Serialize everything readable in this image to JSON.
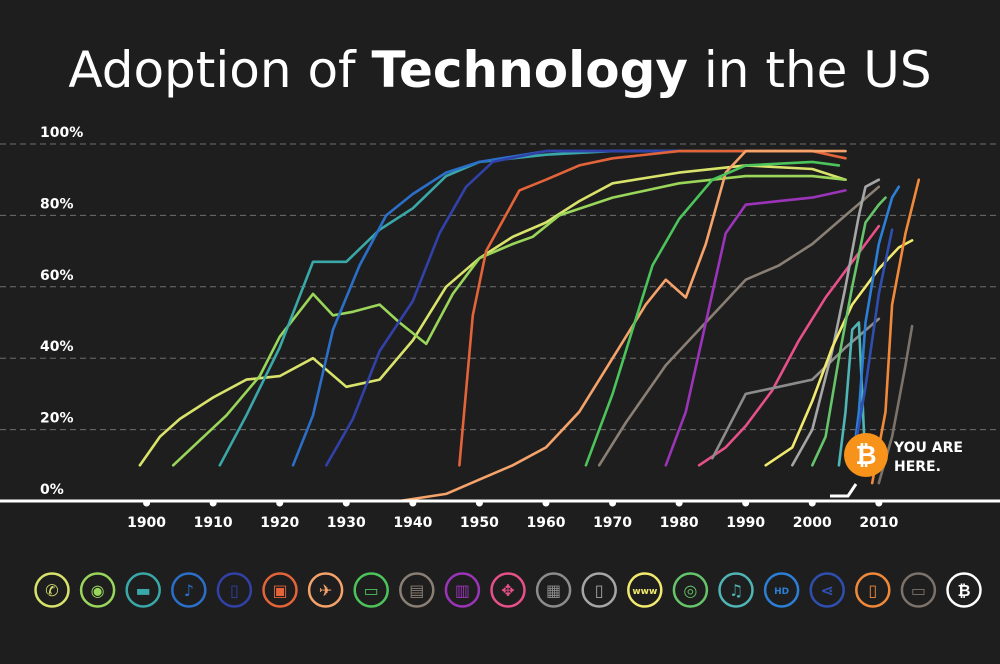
{
  "title": {
    "pre": "Adoption of ",
    "bold": "Technology",
    "post": " in the US"
  },
  "callout": {
    "line1": "YOU ARE",
    "line2": "HERE."
  },
  "colors": {
    "background": "#1e1e1e",
    "text": "#ffffff",
    "gridline": "#777777",
    "bitcoin": "#f7931a"
  },
  "icons": [
    "telephone-icon",
    "light-bulb-icon",
    "car-icon",
    "radio-microphone-icon",
    "refrigerator-icon",
    "television-icon",
    "airplane-icon",
    "color-tv-icon",
    "credit-card-icon",
    "microwave-icon",
    "video-game-icon",
    "computer-icon",
    "cell-phone-icon",
    "internet-icon",
    "digital-camera-icon",
    "mp3-player-icon",
    "hdtv-icon",
    "social-media-icon",
    "smartphone-icon",
    "tablet-icon",
    "bitcoin-icon"
  ],
  "chart_data": {
    "type": "line",
    "xlim": [
      1890,
      2027
    ],
    "ylim": [
      0,
      100
    ],
    "x_ticks": [
      1900,
      1910,
      1920,
      1930,
      1940,
      1950,
      1960,
      1970,
      1980,
      1990,
      2000,
      2010
    ],
    "x_tick_labels": [
      "1900",
      "1910",
      "1920",
      "1930",
      "1940",
      "1950",
      "1960",
      "1970",
      "1980",
      "1990",
      "2000",
      "2010"
    ],
    "y_ticks": [
      0,
      20,
      40,
      60,
      80,
      100
    ],
    "y_tick_labels": [
      "0%",
      "20%",
      "40%",
      "60%",
      "80%",
      "100%"
    ],
    "grid": "horizontal-dashed",
    "series": [
      {
        "color": "#d9e36b",
        "points": [
          [
            1899,
            10
          ],
          [
            1902,
            18
          ],
          [
            1905,
            23
          ],
          [
            1910,
            29
          ],
          [
            1915,
            34
          ],
          [
            1920,
            35
          ],
          [
            1925,
            40
          ],
          [
            1930,
            32
          ],
          [
            1935,
            34
          ],
          [
            1940,
            45
          ],
          [
            1945,
            60
          ],
          [
            1950,
            68
          ],
          [
            1955,
            74
          ],
          [
            1960,
            78
          ],
          [
            1965,
            84
          ],
          [
            1970,
            89
          ],
          [
            1980,
            92
          ],
          [
            1990,
            94
          ],
          [
            2000,
            93
          ],
          [
            2005,
            90
          ]
        ]
      },
      {
        "color": "#9ad65a",
        "points": [
          [
            1904,
            10
          ],
          [
            1908,
            17
          ],
          [
            1912,
            24
          ],
          [
            1917,
            35
          ],
          [
            1920,
            46
          ],
          [
            1925,
            58
          ],
          [
            1928,
            52
          ],
          [
            1931,
            53
          ],
          [
            1935,
            55
          ],
          [
            1938,
            50
          ],
          [
            1942,
            44
          ],
          [
            1946,
            58
          ],
          [
            1950,
            68
          ],
          [
            1955,
            72
          ],
          [
            1958,
            74
          ],
          [
            1962,
            80
          ],
          [
            1970,
            85
          ],
          [
            1980,
            89
          ],
          [
            1990,
            91
          ],
          [
            2000,
            91
          ],
          [
            2005,
            90
          ]
        ]
      },
      {
        "color": "#3aa8a8",
        "points": [
          [
            1911,
            10
          ],
          [
            1915,
            24
          ],
          [
            1920,
            43
          ],
          [
            1925,
            67
          ],
          [
            1930,
            67
          ],
          [
            1935,
            76
          ],
          [
            1940,
            82
          ],
          [
            1945,
            91
          ],
          [
            1950,
            95
          ],
          [
            1955,
            96
          ],
          [
            1960,
            97
          ],
          [
            1970,
            98
          ],
          [
            1990,
            98
          ],
          [
            2000,
            98
          ]
        ]
      },
      {
        "color": "#2b6fc9",
        "points": [
          [
            1922,
            10
          ],
          [
            1925,
            24
          ],
          [
            1928,
            48
          ],
          [
            1932,
            66
          ],
          [
            1936,
            80
          ],
          [
            1940,
            86
          ],
          [
            1945,
            92
          ],
          [
            1950,
            95
          ],
          [
            1960,
            98
          ],
          [
            1980,
            98
          ]
        ]
      },
      {
        "color": "#3141a8",
        "points": [
          [
            1927,
            10
          ],
          [
            1931,
            23
          ],
          [
            1935,
            42
          ],
          [
            1940,
            56
          ],
          [
            1944,
            75
          ],
          [
            1948,
            88
          ],
          [
            1952,
            95
          ],
          [
            1960,
            98
          ],
          [
            1980,
            98
          ]
        ]
      },
      {
        "color": "#e4643a",
        "points": [
          [
            1947,
            10
          ],
          [
            1949,
            52
          ],
          [
            1951,
            70
          ],
          [
            1956,
            87
          ],
          [
            1960,
            90
          ],
          [
            1965,
            94
          ],
          [
            1970,
            96
          ],
          [
            1980,
            98
          ],
          [
            2000,
            98
          ],
          [
            2005,
            96
          ]
        ]
      },
      {
        "color": "#f5a36b",
        "points": [
          [
            1938,
            0
          ],
          [
            1945,
            2
          ],
          [
            1950,
            6
          ],
          [
            1955,
            10
          ],
          [
            1960,
            15
          ],
          [
            1965,
            25
          ],
          [
            1970,
            40
          ],
          [
            1975,
            55
          ],
          [
            1978,
            62
          ],
          [
            1981,
            57
          ],
          [
            1984,
            72
          ],
          [
            1987,
            92
          ],
          [
            1990,
            98
          ],
          [
            2005,
            98
          ]
        ]
      },
      {
        "color": "#4cc45b",
        "points": [
          [
            1966,
            10
          ],
          [
            1970,
            30
          ],
          [
            1973,
            48
          ],
          [
            1976,
            66
          ],
          [
            1980,
            79
          ],
          [
            1985,
            90
          ],
          [
            1990,
            94
          ],
          [
            2000,
            95
          ],
          [
            2004,
            94
          ]
        ]
      },
      {
        "color": "#8a7f74",
        "points": [
          [
            1968,
            10
          ],
          [
            1972,
            22
          ],
          [
            1978,
            38
          ],
          [
            1985,
            52
          ],
          [
            1990,
            62
          ],
          [
            1995,
            66
          ],
          [
            2000,
            72
          ],
          [
            2005,
            80
          ],
          [
            2010,
            88
          ]
        ]
      },
      {
        "color": "#9b34b9",
        "points": [
          [
            1978,
            10
          ],
          [
            1981,
            25
          ],
          [
            1984,
            50
          ],
          [
            1987,
            75
          ],
          [
            1990,
            83
          ],
          [
            1995,
            84
          ],
          [
            2000,
            85
          ],
          [
            2005,
            87
          ]
        ]
      },
      {
        "color": "#e8508a",
        "points": [
          [
            1983,
            10
          ],
          [
            1987,
            15
          ],
          [
            1990,
            21
          ],
          [
            1994,
            31
          ],
          [
            1998,
            45
          ],
          [
            2002,
            57
          ],
          [
            2006,
            67
          ],
          [
            2010,
            77
          ]
        ]
      },
      {
        "color": "#8c8c8c",
        "points": [
          [
            1985,
            12
          ],
          [
            1990,
            30
          ],
          [
            1995,
            32
          ],
          [
            2000,
            34
          ],
          [
            2005,
            43
          ],
          [
            2010,
            51
          ]
        ]
      },
      {
        "color": "#a6a6a6",
        "points": [
          [
            1997,
            10
          ],
          [
            2000,
            20
          ],
          [
            2003,
            42
          ],
          [
            2005,
            60
          ],
          [
            2007,
            80
          ],
          [
            2008,
            88
          ],
          [
            2010,
            90
          ]
        ]
      },
      {
        "color": "#f2ea6f",
        "points": [
          [
            1993,
            10
          ],
          [
            1997,
            15
          ],
          [
            2000,
            28
          ],
          [
            2003,
            43
          ],
          [
            2006,
            55
          ],
          [
            2010,
            65
          ],
          [
            2013,
            71
          ],
          [
            2015,
            73
          ]
        ]
      },
      {
        "color": "#66c46a",
        "points": [
          [
            2000,
            10
          ],
          [
            2002,
            18
          ],
          [
            2004,
            40
          ],
          [
            2006,
            60
          ],
          [
            2008,
            78
          ],
          [
            2010,
            83
          ],
          [
            2011,
            85
          ]
        ]
      },
      {
        "color": "#4fb5b5",
        "points": [
          [
            2004,
            10
          ],
          [
            2005,
            25
          ],
          [
            2006,
            48
          ],
          [
            2007,
            50
          ],
          [
            2008,
            10
          ]
        ]
      },
      {
        "color": "#2c7fd6",
        "points": [
          [
            2006,
            10
          ],
          [
            2007,
            25
          ],
          [
            2008,
            50
          ],
          [
            2010,
            72
          ],
          [
            2012,
            85
          ],
          [
            2013,
            88
          ]
        ]
      },
      {
        "color": "#2f4fb0",
        "points": [
          [
            2006,
            10
          ],
          [
            2008,
            32
          ],
          [
            2010,
            58
          ],
          [
            2012,
            76
          ]
        ]
      },
      {
        "color": "#f08a3a",
        "points": [
          [
            2009,
            5
          ],
          [
            2011,
            25
          ],
          [
            2012,
            55
          ],
          [
            2014,
            75
          ],
          [
            2016,
            90
          ]
        ]
      },
      {
        "color": "#7c726a",
        "points": [
          [
            2010,
            5
          ],
          [
            2012,
            18
          ],
          [
            2014,
            38
          ],
          [
            2015,
            49
          ]
        ]
      }
    ]
  }
}
